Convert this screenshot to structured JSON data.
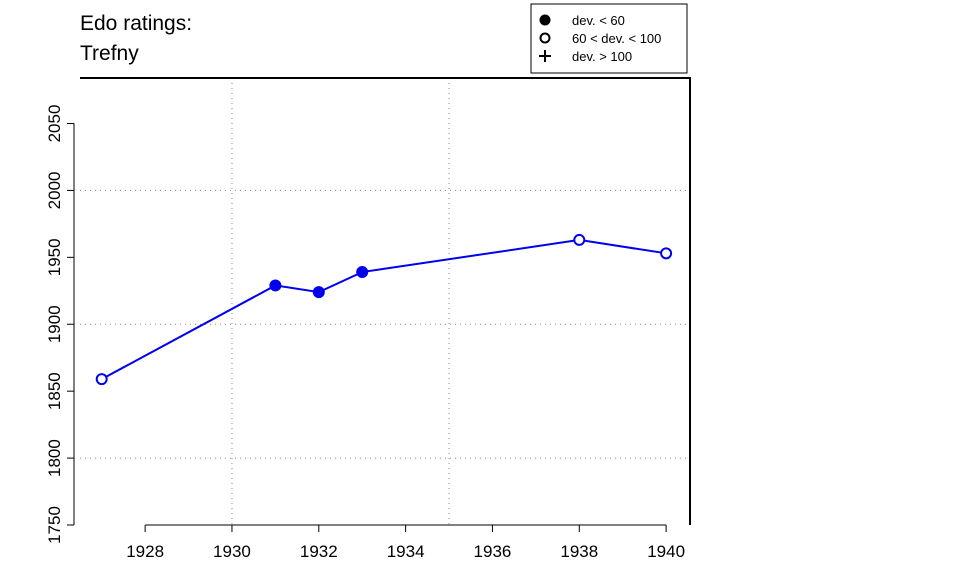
{
  "chart_data": {
    "type": "line",
    "title": [
      "Edo ratings:",
      "Trefny"
    ],
    "x": [
      1927,
      1931,
      1932,
      1933,
      1938,
      1940
    ],
    "series": [
      {
        "color": "#0000ee",
        "values": [
          1859,
          1929,
          1924,
          1939,
          1963,
          1953
        ],
        "marker_class": [
          1,
          0,
          0,
          0,
          1,
          1
        ]
      }
    ],
    "legend": [
      {
        "label": "dev. < 60",
        "marker": "filled"
      },
      {
        "label": "60 < dev. < 100",
        "marker": "open"
      },
      {
        "label": "dev. > 100",
        "marker": "plus"
      }
    ],
    "xlim": [
      1926.5,
      1940.55
    ],
    "ylim": [
      1750,
      2084
    ],
    "xticks": [
      1928,
      1930,
      1932,
      1934,
      1936,
      1938,
      1940
    ],
    "yticks": [
      1750,
      1800,
      1850,
      1900,
      1950,
      2000,
      2050
    ],
    "xgrid": [
      1930,
      1935
    ],
    "ygrid": [
      1800,
      1900,
      2000
    ],
    "legend_position": "top-right"
  }
}
